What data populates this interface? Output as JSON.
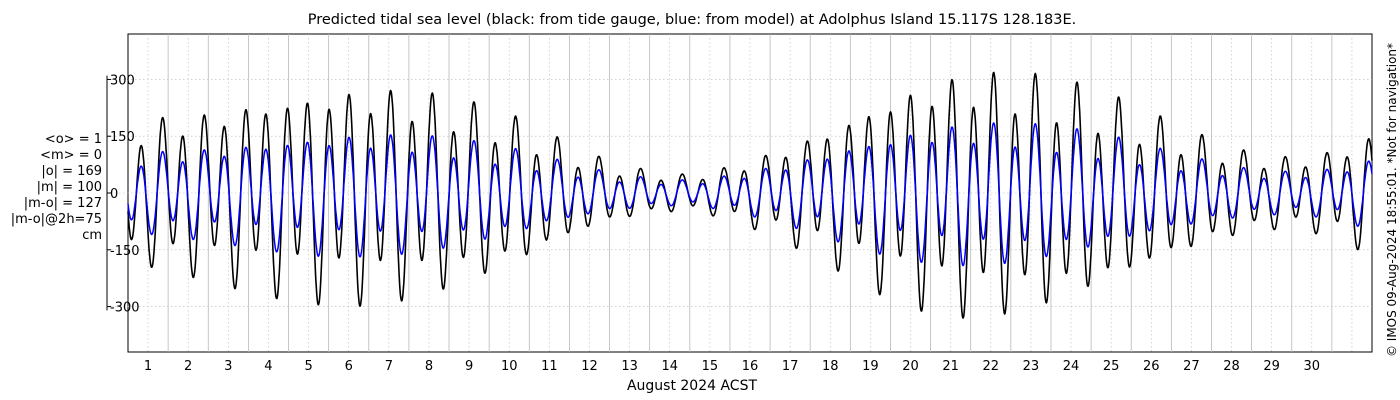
{
  "chart_data": {
    "type": "line",
    "title": "Predicted tidal sea level (black: from tide gauge, blue: from model) at Adolphus Island 15.117S 128.183E.",
    "xlabel": "August 2024 ACST",
    "ylabel": "",
    "xlim": [
      0,
      31
    ],
    "ylim": [
      -420,
      420
    ],
    "grid": true,
    "x_ticks": [
      "1",
      "2",
      "3",
      "4",
      "5",
      "6",
      "7",
      "8",
      "9",
      "10",
      "11",
      "12",
      "13",
      "14",
      "15",
      "16",
      "17",
      "18",
      "19",
      "20",
      "21",
      "22",
      "23",
      "24",
      "25",
      "26",
      "27",
      "28",
      "29",
      "30"
    ],
    "y_ticks": [
      {
        "value": 300,
        "label": "300"
      },
      {
        "value": 150,
        "label": "150"
      },
      {
        "value": 0,
        "label": "0"
      },
      {
        "value": -150,
        "label": "-150"
      },
      {
        "value": -300,
        "label": "-300"
      }
    ],
    "series": [
      {
        "color": "#000000",
        "days": [
          0,
          1,
          2,
          3,
          4,
          5,
          6,
          7,
          8,
          9,
          10,
          11,
          12,
          13,
          14,
          15,
          16,
          17,
          18,
          19,
          20,
          21,
          22,
          23,
          24,
          25,
          26,
          27,
          28,
          29,
          30,
          31
        ],
        "amp": [
          190,
          220,
          235,
          265,
          285,
          300,
          305,
          295,
          270,
          235,
          190,
          130,
          85,
          60,
          50,
          75,
          115,
          165,
          225,
          285,
          325,
          345,
          340,
          320,
          285,
          240,
          190,
          145,
          110,
          100,
          120,
          170
        ],
        "mean": [
          0,
          0,
          0,
          0,
          0,
          0,
          0,
          0,
          0,
          0,
          0,
          0,
          0,
          0,
          0,
          0,
          0,
          0,
          0,
          0,
          0,
          0,
          0,
          0,
          0,
          0,
          0,
          0,
          0,
          0,
          0,
          0
        ]
      },
      {
        "color": "#0000ff",
        "days": [
          0,
          1,
          2,
          3,
          4,
          5,
          6,
          7,
          8,
          9,
          10,
          11,
          12,
          13,
          14,
          15,
          16,
          17,
          18,
          19,
          20,
          21,
          22,
          23,
          24,
          25,
          26,
          27,
          28,
          29,
          30,
          31
        ],
        "amp": [
          110,
          120,
          130,
          145,
          160,
          170,
          172,
          168,
          155,
          135,
          110,
          80,
          55,
          40,
          35,
          50,
          75,
          105,
          140,
          170,
          190,
          200,
          198,
          185,
          165,
          140,
          110,
          85,
          65,
          60,
          70,
          100
        ],
        "mean": [
          0,
          0,
          0,
          0,
          0,
          0,
          0,
          0,
          0,
          0,
          0,
          0,
          0,
          0,
          0,
          0,
          0,
          0,
          0,
          0,
          0,
          0,
          0,
          0,
          0,
          0,
          0,
          0,
          0,
          0,
          0,
          0
        ]
      }
    ],
    "colors": {
      "gauge": "#000000",
      "model": "#0000ff",
      "grid": "#b8b8b8"
    }
  },
  "stats": {
    "line1": "<o> = 1",
    "line2": "<m> = 0",
    "line3": "|o| = 169",
    "line4": "|m| = 100",
    "line5": "|m-o| = 127",
    "line6": "|m-o|@2h=75",
    "line7": "cm"
  },
  "credit": "© IMOS 09-Aug-2024 18:55:01. *Not for navigation*"
}
